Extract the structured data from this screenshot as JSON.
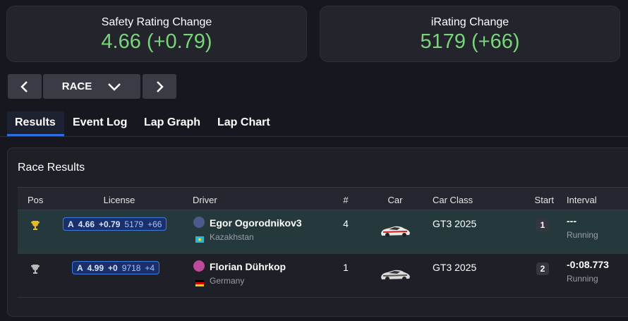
{
  "cards": [
    {
      "title": "Safety Rating Change",
      "value": "4.66 (+0.79)"
    },
    {
      "title": "iRating Change",
      "value": "5179 (+66)"
    }
  ],
  "session_selector": {
    "label": "RACE"
  },
  "tabs": [
    "Results",
    "Event Log",
    "Lap Graph",
    "Lap Chart"
  ],
  "panel": {
    "title": "Race Results",
    "columns": [
      "Pos",
      "License",
      "Driver",
      "#",
      "Car",
      "Car Class",
      "Start",
      "Interval"
    ],
    "rows": [
      {
        "license": {
          "class": "A",
          "sr": "4.66",
          "sr_change": "+0.79",
          "irating": "5179",
          "ir_change": "+66"
        },
        "driver": "Egor Ogorodnikov3",
        "country": "Kazakhstan",
        "number": "4",
        "car_class": "GT3 2025",
        "start": "1",
        "interval": "---",
        "status": "Running"
      },
      {
        "license": {
          "class": "A",
          "sr": "4.99",
          "sr_change": "+0",
          "irating": "9718",
          "ir_change": "+4"
        },
        "driver": "Florian Dührkop",
        "country": "Germany",
        "number": "1",
        "car_class": "GT3 2025",
        "start": "2",
        "interval": "-0:08.773",
        "status": "Running"
      }
    ]
  }
}
